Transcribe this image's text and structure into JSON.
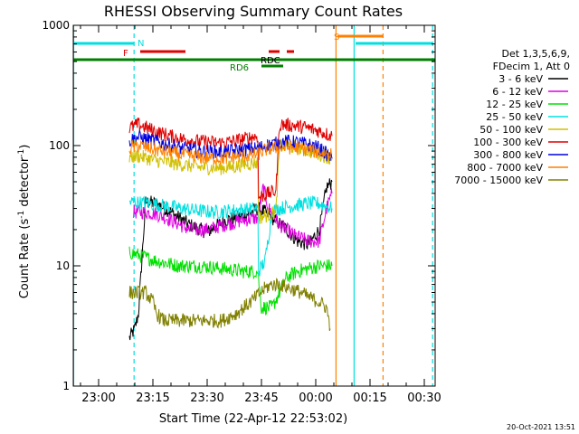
{
  "chart_data": {
    "type": "line",
    "title": "RHESSI Observing Summary Count Rates",
    "xlabel": "Start Time (22-Apr-12 22:53:02)",
    "ylabel_main": "Count Rate (s",
    "ylabel_sup1": "-1",
    "ylabel_mid": " detector",
    "ylabel_sup2": "-1",
    "ylabel_end": ")",
    "y_scale": "log",
    "ylim": [
      1,
      1000
    ],
    "xlim_minutes": [
      -7,
      33
    ],
    "x_ticks": [
      {
        "m": 0,
        "label": "23:00"
      },
      {
        "m": 15,
        "label": "23:15"
      },
      {
        "m": 30,
        "label": "23:30"
      },
      {
        "m": 45,
        "label": "23:45"
      },
      {
        "m": 60,
        "label": "00:00"
      },
      {
        "m": 75,
        "label": "00:15"
      },
      {
        "m": 90,
        "label": "00:30"
      }
    ],
    "y_ticks": [
      {
        "v": 1,
        "label": "1"
      },
      {
        "v": 10,
        "label": "10"
      },
      {
        "v": 100,
        "label": "100"
      },
      {
        "v": 1000,
        "label": "1000"
      }
    ],
    "legend": {
      "header1": "Det 1,3,5,6,9,",
      "header2": "FDecim 1, Att 0",
      "entries": [
        {
          "label": "3 - 6 keV",
          "color": "#000000"
        },
        {
          "label": "6 - 12 keV",
          "color": "#e000e0"
        },
        {
          "label": "12 - 25 keV",
          "color": "#00e000"
        },
        {
          "label": "25 - 50 keV",
          "color": "#00e0e0"
        },
        {
          "label": "50 - 100 keV",
          "color": "#d0c000"
        },
        {
          "label": "100 - 300 keV",
          "color": "#e00000"
        },
        {
          "label": "300 - 800 keV",
          "color": "#0000e0"
        },
        {
          "label": "800 - 7000 keV",
          "color": "#ff8000"
        },
        {
          "label": "7000 - 15000 keV",
          "color": "#808000"
        }
      ]
    },
    "flags": [
      {
        "label": "N",
        "color": "#00e0e0"
      },
      {
        "label": "F",
        "color": "#e00000"
      },
      {
        "label": "RDC",
        "color": "#e00000"
      },
      {
        "label": "RD6",
        "color": "#008000"
      },
      {
        "label": "S",
        "color": "#ff8000"
      }
    ],
    "series": [
      {
        "name": "3 - 6 keV",
        "color": "#000000",
        "points": [
          [
            8.5,
            2.5
          ],
          [
            10,
            3
          ],
          [
            11,
            4
          ],
          [
            13,
            34
          ],
          [
            16,
            33
          ],
          [
            20,
            28
          ],
          [
            25,
            22
          ],
          [
            30,
            19
          ],
          [
            35,
            24
          ],
          [
            40,
            26
          ],
          [
            44,
            30
          ],
          [
            46,
            28
          ],
          [
            48,
            25
          ],
          [
            52,
            20
          ],
          [
            55,
            16
          ],
          [
            58,
            15
          ],
          [
            61,
            20
          ],
          [
            63,
            45
          ],
          [
            64.5,
            50
          ]
        ]
      },
      {
        "name": "6 - 12 keV",
        "color": "#e000e0",
        "points": [
          [
            9.5,
            28
          ],
          [
            13,
            28
          ],
          [
            16,
            27
          ],
          [
            20,
            24
          ],
          [
            25,
            20
          ],
          [
            30,
            20
          ],
          [
            35,
            22
          ],
          [
            40,
            24
          ],
          [
            44,
            25
          ],
          [
            45.5,
            45
          ],
          [
            47,
            30
          ],
          [
            50,
            22
          ],
          [
            54,
            18
          ],
          [
            58,
            16
          ],
          [
            61,
            16
          ],
          [
            63,
            30
          ],
          [
            64.5,
            40
          ]
        ]
      },
      {
        "name": "12 - 25 keV",
        "color": "#00e000",
        "points": [
          [
            8.5,
            13
          ],
          [
            12,
            12
          ],
          [
            16,
            11
          ],
          [
            22,
            10
          ],
          [
            28,
            10
          ],
          [
            34,
            9.5
          ],
          [
            40,
            9
          ],
          [
            44,
            9
          ],
          [
            45,
            4.5
          ],
          [
            48,
            4.5
          ],
          [
            50,
            6
          ],
          [
            52,
            8
          ],
          [
            55,
            9
          ],
          [
            58,
            9.5
          ],
          [
            61,
            10
          ],
          [
            64.5,
            10
          ]
        ]
      },
      {
        "name": "25 - 50 keV",
        "color": "#00e0e0",
        "points": [
          [
            8.5,
            34
          ],
          [
            14,
            33
          ],
          [
            20,
            31
          ],
          [
            26,
            29
          ],
          [
            32,
            28
          ],
          [
            38,
            29
          ],
          [
            44,
            30
          ],
          [
            44.2,
            9
          ],
          [
            46,
            11
          ],
          [
            48,
            29
          ],
          [
            52,
            31
          ],
          [
            55,
            32
          ],
          [
            58,
            33
          ],
          [
            61,
            33
          ],
          [
            64.5,
            30
          ]
        ]
      },
      {
        "name": "50 - 100 keV",
        "color": "#d0c000",
        "points": [
          [
            8.5,
            80
          ],
          [
            11,
            82
          ],
          [
            16,
            75
          ],
          [
            22,
            70
          ],
          [
            28,
            66
          ],
          [
            34,
            65
          ],
          [
            38,
            67
          ],
          [
            40,
            70
          ],
          [
            44,
            72
          ],
          [
            44.2,
            25
          ],
          [
            46,
            26
          ],
          [
            49,
            28
          ],
          [
            50,
            100
          ],
          [
            53,
            98
          ],
          [
            57,
            92
          ],
          [
            61,
            85
          ],
          [
            64.5,
            78
          ]
        ]
      },
      {
        "name": "100 - 300 keV",
        "color": "#e00000",
        "points": [
          [
            8.5,
            140
          ],
          [
            11,
            150
          ],
          [
            16,
            130
          ],
          [
            22,
            115
          ],
          [
            28,
            108
          ],
          [
            34,
            105
          ],
          [
            38,
            110
          ],
          [
            41,
            115
          ],
          [
            44,
            120
          ],
          [
            44.2,
            37
          ],
          [
            46,
            39
          ],
          [
            49,
            42
          ],
          [
            50,
            150
          ],
          [
            53,
            148
          ],
          [
            57,
            142
          ],
          [
            61,
            132
          ],
          [
            64.5,
            120
          ]
        ]
      },
      {
        "name": "300 - 800 keV",
        "color": "#0000e0",
        "points": [
          [
            8.5,
            110
          ],
          [
            11,
            118
          ],
          [
            16,
            108
          ],
          [
            22,
            96
          ],
          [
            28,
            90
          ],
          [
            34,
            88
          ],
          [
            40,
            92
          ],
          [
            44,
            95
          ],
          [
            46,
            100
          ],
          [
            49,
            104
          ],
          [
            52,
            108
          ],
          [
            55,
            106
          ],
          [
            58,
            102
          ],
          [
            61,
            95
          ],
          [
            64.5,
            78
          ]
        ]
      },
      {
        "name": "800 - 7000 keV",
        "color": "#ff8000",
        "points": [
          [
            8.5,
            95
          ],
          [
            11,
            100
          ],
          [
            16,
            92
          ],
          [
            22,
            85
          ],
          [
            28,
            80
          ],
          [
            34,
            78
          ],
          [
            40,
            82
          ],
          [
            44,
            85
          ],
          [
            46,
            92
          ],
          [
            49,
            96
          ],
          [
            52,
            97
          ],
          [
            55,
            95
          ],
          [
            58,
            92
          ],
          [
            61,
            88
          ],
          [
            64.5,
            85
          ]
        ]
      },
      {
        "name": "7000 - 15000 keV",
        "color": "#808000",
        "points": [
          [
            8.5,
            6
          ],
          [
            13,
            6
          ],
          [
            15,
            5
          ],
          [
            16,
            4
          ],
          [
            18,
            3.5
          ],
          [
            22,
            3.5
          ],
          [
            28,
            3.5
          ],
          [
            34,
            3.5
          ],
          [
            38,
            4
          ],
          [
            42,
            5
          ],
          [
            46,
            6.5
          ],
          [
            48,
            7
          ],
          [
            50,
            7
          ],
          [
            53,
            6.5
          ],
          [
            56,
            6
          ],
          [
            58,
            5.5
          ],
          [
            61,
            5
          ],
          [
            63,
            4.5
          ],
          [
            64,
            3
          ]
        ]
      }
    ]
  },
  "footer": {
    "timestamp": "20-Oct-2021 13:51"
  }
}
